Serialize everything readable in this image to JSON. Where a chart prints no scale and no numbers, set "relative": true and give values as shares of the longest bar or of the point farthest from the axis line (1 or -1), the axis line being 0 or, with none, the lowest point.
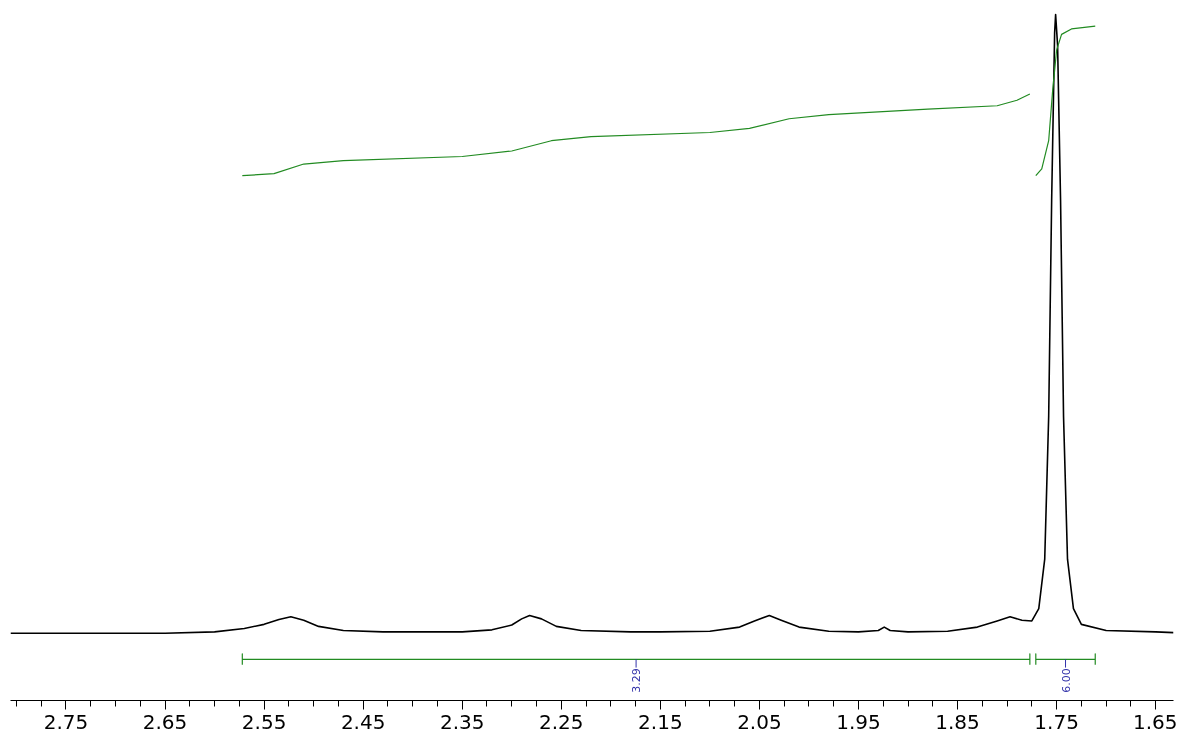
{
  "chart_data": {
    "type": "line",
    "relative": true,
    "xlim": [
      2.806,
      1.632
    ],
    "xticks": [
      2.75,
      2.65,
      2.55,
      2.45,
      2.35,
      2.25,
      2.15,
      2.05,
      1.95,
      1.85,
      1.75,
      1.65
    ],
    "line_style": "solid",
    "series": [
      {
        "color": "#000000",
        "x": [
          2.806,
          2.65,
          2.6,
          2.57,
          2.55,
          2.535,
          2.523,
          2.51,
          2.495,
          2.47,
          2.43,
          2.4,
          2.35,
          2.32,
          2.3,
          2.29,
          2.282,
          2.27,
          2.255,
          2.23,
          2.18,
          2.15,
          2.1,
          2.07,
          2.055,
          2.04,
          2.028,
          2.01,
          1.98,
          1.95,
          1.93,
          1.924,
          1.918,
          1.9,
          1.86,
          1.83,
          1.81,
          1.797,
          1.785,
          1.775,
          1.768,
          1.762,
          1.758,
          1.755,
          1.752,
          1.751,
          1.749,
          1.746,
          1.743,
          1.739,
          1.733,
          1.725,
          1.7,
          1.65,
          1.632
        ],
        "values": [
          0.098,
          0.098,
          0.1,
          0.105,
          0.111,
          0.118,
          0.122,
          0.117,
          0.108,
          0.102,
          0.1,
          0.1,
          0.1,
          0.103,
          0.11,
          0.119,
          0.124,
          0.119,
          0.108,
          0.102,
          0.1,
          0.1,
          0.101,
          0.107,
          0.116,
          0.124,
          0.117,
          0.107,
          0.101,
          0.1,
          0.102,
          0.107,
          0.102,
          0.1,
          0.101,
          0.107,
          0.116,
          0.122,
          0.117,
          0.116,
          0.134,
          0.206,
          0.414,
          0.729,
          0.973,
          1.0,
          0.955,
          0.729,
          0.414,
          0.206,
          0.134,
          0.111,
          0.102,
          0.1,
          0.099
        ]
      },
      {
        "color": "#228b22",
        "x": [
          2.572,
          2.54,
          2.51,
          2.47,
          2.35,
          2.3,
          2.26,
          2.22,
          2.1,
          2.06,
          2.02,
          1.98,
          1.88,
          1.81,
          1.79,
          1.777
        ],
        "values": [
          0.765,
          0.768,
          0.782,
          0.787,
          0.793,
          0.801,
          0.816,
          0.822,
          0.828,
          0.834,
          0.848,
          0.854,
          0.862,
          0.867,
          0.875,
          0.884
        ]
      },
      {
        "color": "#228b22",
        "x": [
          1.771,
          1.765,
          1.758,
          1.754,
          1.75,
          1.745,
          1.735,
          1.711
        ],
        "values": [
          0.765,
          0.775,
          0.816,
          0.889,
          0.948,
          0.971,
          0.979,
          0.983
        ]
      },
      {
        "color": "#228b22",
        "x": [
          2.572,
          2.572,
          2.572,
          1.777,
          1.777,
          1.777
        ],
        "values": [
          0.052,
          0.068,
          0.06,
          0.06,
          0.068,
          0.052
        ]
      },
      {
        "color": "#228b22",
        "x": [
          1.771,
          1.771,
          1.771,
          1.711,
          1.711,
          1.711
        ],
        "values": [
          0.052,
          0.068,
          0.06,
          0.06,
          0.068,
          0.052
        ]
      }
    ],
    "annotations": [
      {
        "text": "3.29",
        "x": 2.1745,
        "y": 0.06
      },
      {
        "text": "6.00",
        "x": 1.741,
        "y": 0.06
      }
    ]
  }
}
